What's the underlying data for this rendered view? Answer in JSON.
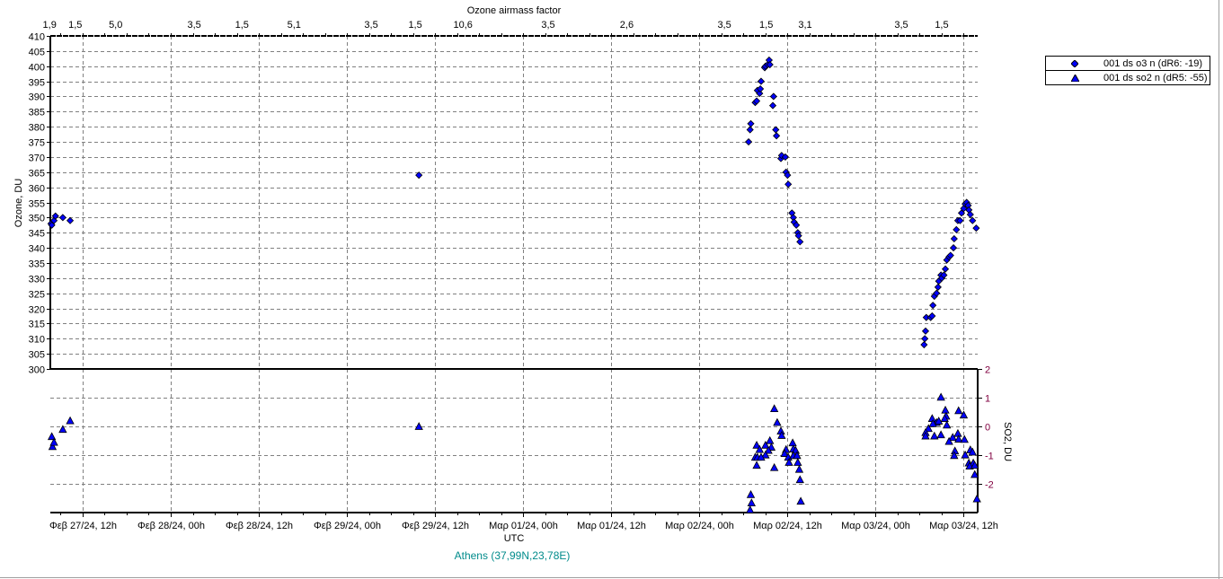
{
  "chart_data": {
    "type": "scatter",
    "top_axis_title": "Ozone airmass factor",
    "xlabel": "UTC",
    "ylabel_left": "Ozone, DU",
    "ylabel_right": "SO2, DU",
    "location": "Athens (37,99N,23,78E)",
    "x_units": "hours since Φεβ 27/24, 00h",
    "xlim": [
      7.6,
      133.9
    ],
    "ozone_ylim": [
      300,
      410
    ],
    "so2_ylim": [
      -3,
      2
    ],
    "grid": true,
    "legend_position": "top-right",
    "x_ticks": [
      {
        "hour": 12,
        "label": "Φεβ 27/24, 12h"
      },
      {
        "hour": 24,
        "label": "Φεβ 28/24, 00h"
      },
      {
        "hour": 36,
        "label": "Φεβ 28/24, 12h"
      },
      {
        "hour": 48,
        "label": "Φεβ 29/24, 00h"
      },
      {
        "hour": 60,
        "label": "Φεβ 29/24, 12h"
      },
      {
        "hour": 72,
        "label": "Μαρ 01/24, 00h"
      },
      {
        "hour": 84,
        "label": "Μαρ 01/24, 12h"
      },
      {
        "hour": 96,
        "label": "Μαρ 02/24, 00h"
      },
      {
        "hour": 108,
        "label": "Μαρ 02/24, 12h"
      },
      {
        "hour": 120,
        "label": "Μαρ 03/24, 00h"
      },
      {
        "hour": 132,
        "label": "Μαρ 03/24, 12h"
      }
    ],
    "airmass_ticks": [
      {
        "hour": 7.5,
        "label": "1,9"
      },
      {
        "hour": 11.0,
        "label": "1,5"
      },
      {
        "hour": 16.5,
        "label": "5,0"
      },
      {
        "hour": 27.2,
        "label": "3,5"
      },
      {
        "hour": 33.7,
        "label": "1,5"
      },
      {
        "hour": 40.8,
        "label": "5,1"
      },
      {
        "hour": 51.3,
        "label": "3,5"
      },
      {
        "hour": 57.3,
        "label": "1,5"
      },
      {
        "hour": 63.8,
        "label": "10,6"
      },
      {
        "hour": 75.4,
        "label": "3,5"
      },
      {
        "hour": 86.1,
        "label": "2,6"
      },
      {
        "hour": 99.4,
        "label": "3,5"
      },
      {
        "hour": 105.1,
        "label": "1,5"
      },
      {
        "hour": 110.4,
        "label": "3,1"
      },
      {
        "hour": 123.5,
        "label": "3,5"
      },
      {
        "hour": 129.0,
        "label": "1,5"
      }
    ],
    "ozone_ticks": [
      "300",
      "305",
      "310",
      "315",
      "320",
      "325",
      "330",
      "335",
      "340",
      "345",
      "350",
      "355",
      "360",
      "365",
      "370",
      "375",
      "380",
      "385",
      "390",
      "395",
      "400",
      "405",
      "410"
    ],
    "so2_ticks": [
      "2",
      "1",
      "0",
      "-1",
      "-2"
    ],
    "series": [
      {
        "name": "001 ds o3  n (dR6: -19)",
        "marker": "diamond",
        "axis": "ozone",
        "color": "#0000ff",
        "points": [
          [
            7.7,
            348
          ],
          [
            7.8,
            347.5
          ],
          [
            8.1,
            349
          ],
          [
            8.3,
            350.5
          ],
          [
            9.3,
            350
          ],
          [
            10.3,
            349
          ],
          [
            57.8,
            364
          ],
          [
            102.7,
            375
          ],
          [
            102.9,
            379
          ],
          [
            103.0,
            381
          ],
          [
            103.6,
            388
          ],
          [
            103.8,
            388.5
          ],
          [
            103.9,
            392
          ],
          [
            104.2,
            391
          ],
          [
            104.3,
            392.5
          ],
          [
            104.4,
            395
          ],
          [
            104.9,
            399.5
          ],
          [
            105.0,
            400
          ],
          [
            105.3,
            400.5
          ],
          [
            105.5,
            402
          ],
          [
            105.6,
            400.5
          ],
          [
            106.0,
            387
          ],
          [
            106.1,
            390
          ],
          [
            106.4,
            379
          ],
          [
            106.5,
            377
          ],
          [
            107.1,
            369.5
          ],
          [
            107.2,
            370.5
          ],
          [
            107.7,
            370
          ],
          [
            107.8,
            365
          ],
          [
            108.0,
            364
          ],
          [
            108.1,
            361
          ],
          [
            108.6,
            351.5
          ],
          [
            108.8,
            350
          ],
          [
            108.9,
            348.5
          ],
          [
            109.2,
            347.5
          ],
          [
            109.4,
            345
          ],
          [
            109.5,
            344
          ],
          [
            109.7,
            342
          ],
          [
            126.6,
            308
          ],
          [
            126.7,
            310
          ],
          [
            126.8,
            312.5
          ],
          [
            126.9,
            317
          ],
          [
            127.5,
            317
          ],
          [
            127.7,
            317.5
          ],
          [
            127.8,
            321
          ],
          [
            128.0,
            324
          ],
          [
            128.3,
            325
          ],
          [
            128.5,
            327
          ],
          [
            128.6,
            329
          ],
          [
            128.9,
            331
          ],
          [
            129.0,
            330
          ],
          [
            129.3,
            331
          ],
          [
            129.5,
            333
          ],
          [
            129.7,
            336
          ],
          [
            130.0,
            337
          ],
          [
            130.2,
            337.5
          ],
          [
            130.6,
            340
          ],
          [
            130.7,
            343
          ],
          [
            131.0,
            346
          ],
          [
            131.2,
            349
          ],
          [
            131.5,
            349
          ],
          [
            131.7,
            351.5
          ],
          [
            132.0,
            353
          ],
          [
            132.2,
            354.5
          ],
          [
            132.4,
            355
          ],
          [
            132.6,
            354
          ],
          [
            132.7,
            352.5
          ],
          [
            132.9,
            351
          ],
          [
            133.2,
            349
          ],
          [
            133.7,
            346.5
          ]
        ]
      },
      {
        "name": "001 ds so2 n (dR5: -55)",
        "marker": "triangle",
        "axis": "so2",
        "color": "#0000ff",
        "points": [
          [
            7.8,
            -0.35
          ],
          [
            7.9,
            -0.7
          ],
          [
            8.1,
            -0.55
          ],
          [
            9.3,
            -0.1
          ],
          [
            10.3,
            0.2
          ],
          [
            57.8,
            0
          ],
          [
            103.0,
            -2.37
          ],
          [
            103.1,
            -2.66
          ],
          [
            102.9,
            -2.9
          ],
          [
            103.8,
            -0.65
          ],
          [
            104.2,
            -0.8
          ],
          [
            105.0,
            -0.65
          ],
          [
            105.6,
            -0.49
          ],
          [
            105.8,
            -0.72
          ],
          [
            105.4,
            -0.83
          ],
          [
            105.0,
            -0.99
          ],
          [
            103.6,
            -1.07
          ],
          [
            103.9,
            -1.07
          ],
          [
            104.4,
            -1.07
          ],
          [
            103.8,
            -1.35
          ],
          [
            106.2,
            0.62
          ],
          [
            106.6,
            0.14
          ],
          [
            107.1,
            -0.16
          ],
          [
            107.2,
            -0.31
          ],
          [
            106.2,
            -1.43
          ],
          [
            108.7,
            -0.57
          ],
          [
            108.8,
            -0.78
          ],
          [
            109.1,
            -0.83
          ],
          [
            107.8,
            -0.8
          ],
          [
            107.6,
            -0.94
          ],
          [
            108.1,
            -1.07
          ],
          [
            108.8,
            -1.01
          ],
          [
            109.3,
            -1.01
          ],
          [
            108.2,
            -1.25
          ],
          [
            109.4,
            -1.25
          ],
          [
            109.6,
            -1.49
          ],
          [
            109.7,
            -1.85
          ],
          [
            109.8,
            -2.6
          ],
          [
            128.9,
            1.02
          ],
          [
            129.5,
            0.57
          ],
          [
            131.3,
            0.55
          ],
          [
            132.0,
            0.4
          ],
          [
            129.6,
            0.36
          ],
          [
            129.4,
            0.28
          ],
          [
            127.7,
            0.28
          ],
          [
            128.3,
            0.14
          ],
          [
            128.6,
            0.19
          ],
          [
            127.8,
            0.1
          ],
          [
            129.7,
            0.05
          ],
          [
            127.2,
            -0.07
          ],
          [
            126.8,
            -0.21
          ],
          [
            126.8,
            -0.33
          ],
          [
            128.0,
            -0.33
          ],
          [
            128.9,
            -0.29
          ],
          [
            131.2,
            -0.24
          ],
          [
            130.5,
            -0.38
          ],
          [
            131.3,
            -0.44
          ],
          [
            132.1,
            -0.45
          ],
          [
            130.0,
            -0.52
          ],
          [
            130.8,
            -0.85
          ],
          [
            130.7,
            -1.01
          ],
          [
            132.2,
            -0.99
          ],
          [
            132.9,
            -0.81
          ],
          [
            133.2,
            -0.89
          ],
          [
            132.7,
            -1.27
          ],
          [
            133.3,
            -1.27
          ],
          [
            132.8,
            -1.38
          ],
          [
            133.5,
            -1.35
          ],
          [
            133.5,
            -1.67
          ],
          [
            133.8,
            -2.52
          ]
        ]
      }
    ]
  }
}
